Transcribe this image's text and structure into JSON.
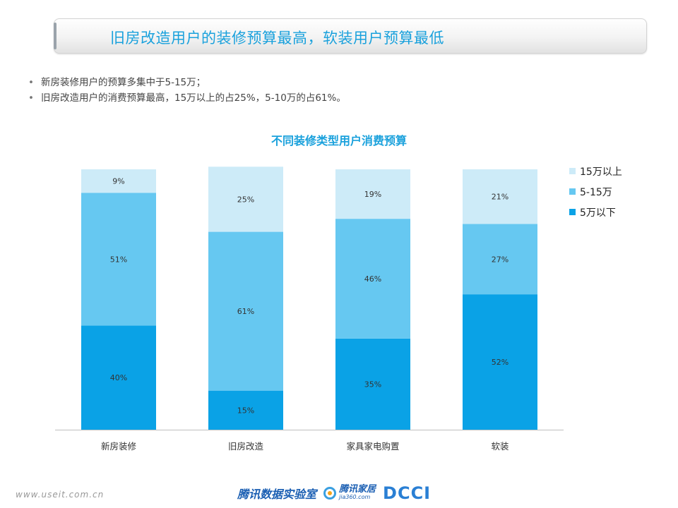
{
  "title": "旧房改造用户的装修预算最高，软装用户预算最低",
  "bullets": [
    "新房装修用户的预算多集中于5-15万；",
    "旧房改造用户的消费预算最高，15万以上的占25%，5-10万的占61%。"
  ],
  "footer": {
    "url": "www.useit.com.cn",
    "logo_tencent_lab": "腾讯数据实验室",
    "logo_jiaju": "腾讯家居",
    "logo_jiaju_sub": "jia360.com",
    "logo_dcci": "DCCI"
  },
  "chart_data": {
    "type": "bar",
    "stacked": true,
    "title": "不同装修类型用户消费预算",
    "categories": [
      "新房装修",
      "旧房改造",
      "家具家电购置",
      "软装"
    ],
    "series": [
      {
        "name": "5万以下",
        "values": [
          40,
          15,
          35,
          52
        ],
        "labels": [
          "40%",
          "15%",
          "35%",
          "52%"
        ],
        "color": "#0aa2e6"
      },
      {
        "name": "5-15万",
        "values": [
          51,
          61,
          46,
          27
        ],
        "labels": [
          "51%",
          "61%",
          "46%",
          "27%"
        ],
        "color": "#66c8f1"
      },
      {
        "name": "15万以上",
        "values": [
          9,
          25,
          19,
          21
        ],
        "labels": [
          "9%",
          "25%",
          "19%",
          "21%"
        ],
        "color": "#cdebf8"
      }
    ],
    "ylim": [
      0,
      100
    ],
    "grid": false,
    "legend_position": "right"
  }
}
